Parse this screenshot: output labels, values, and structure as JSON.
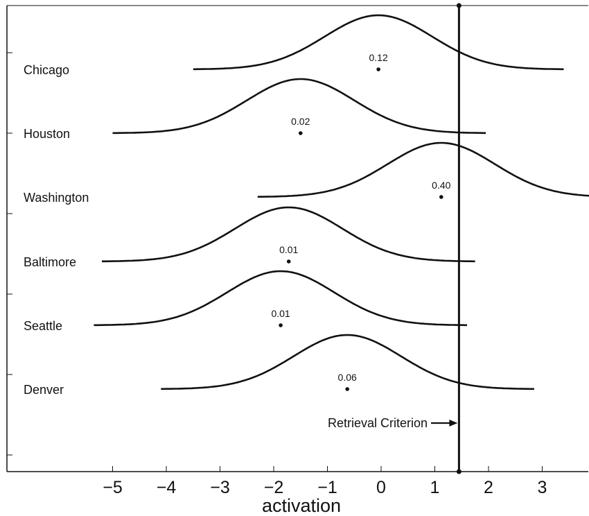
{
  "chart_data": {
    "type": "line",
    "xlabel": "activation",
    "xlim": [
      -5.7,
      3.9
    ],
    "x_ticks": [
      -5,
      -4,
      -3,
      -2,
      -1,
      0,
      1,
      2,
      3
    ],
    "x_tick_labels": [
      "−5",
      "−4",
      "−3",
      "−2",
      "−1",
      "0",
      "1",
      "2",
      "3"
    ],
    "criterion": {
      "x": 1.45,
      "label": "Retrieval Criterion"
    },
    "series": [
      {
        "name": "Chicago",
        "mean": -0.05,
        "sd": 1.0,
        "x_range": [
          -3.5,
          3.4
        ],
        "prob_label": "0.12"
      },
      {
        "name": "Houston",
        "mean": -1.5,
        "sd": 1.0,
        "x_range": [
          -5.0,
          1.95
        ],
        "prob_label": "0.02"
      },
      {
        "name": "Washington",
        "mean": 1.12,
        "sd": 1.0,
        "x_range": [
          -2.3,
          3.9
        ],
        "prob_label": "0.40"
      },
      {
        "name": "Baltimore",
        "mean": -1.72,
        "sd": 1.0,
        "x_range": [
          -5.2,
          1.75
        ],
        "prob_label": "0.01"
      },
      {
        "name": "Seattle",
        "mean": -1.87,
        "sd": 1.0,
        "x_range": [
          -5.35,
          1.6
        ],
        "prob_label": "0.01"
      },
      {
        "name": "Denver",
        "mean": -0.63,
        "sd": 1.0,
        "x_range": [
          -4.1,
          2.85
        ],
        "prob_label": "0.06"
      }
    ],
    "grid": false,
    "legend": "none"
  }
}
